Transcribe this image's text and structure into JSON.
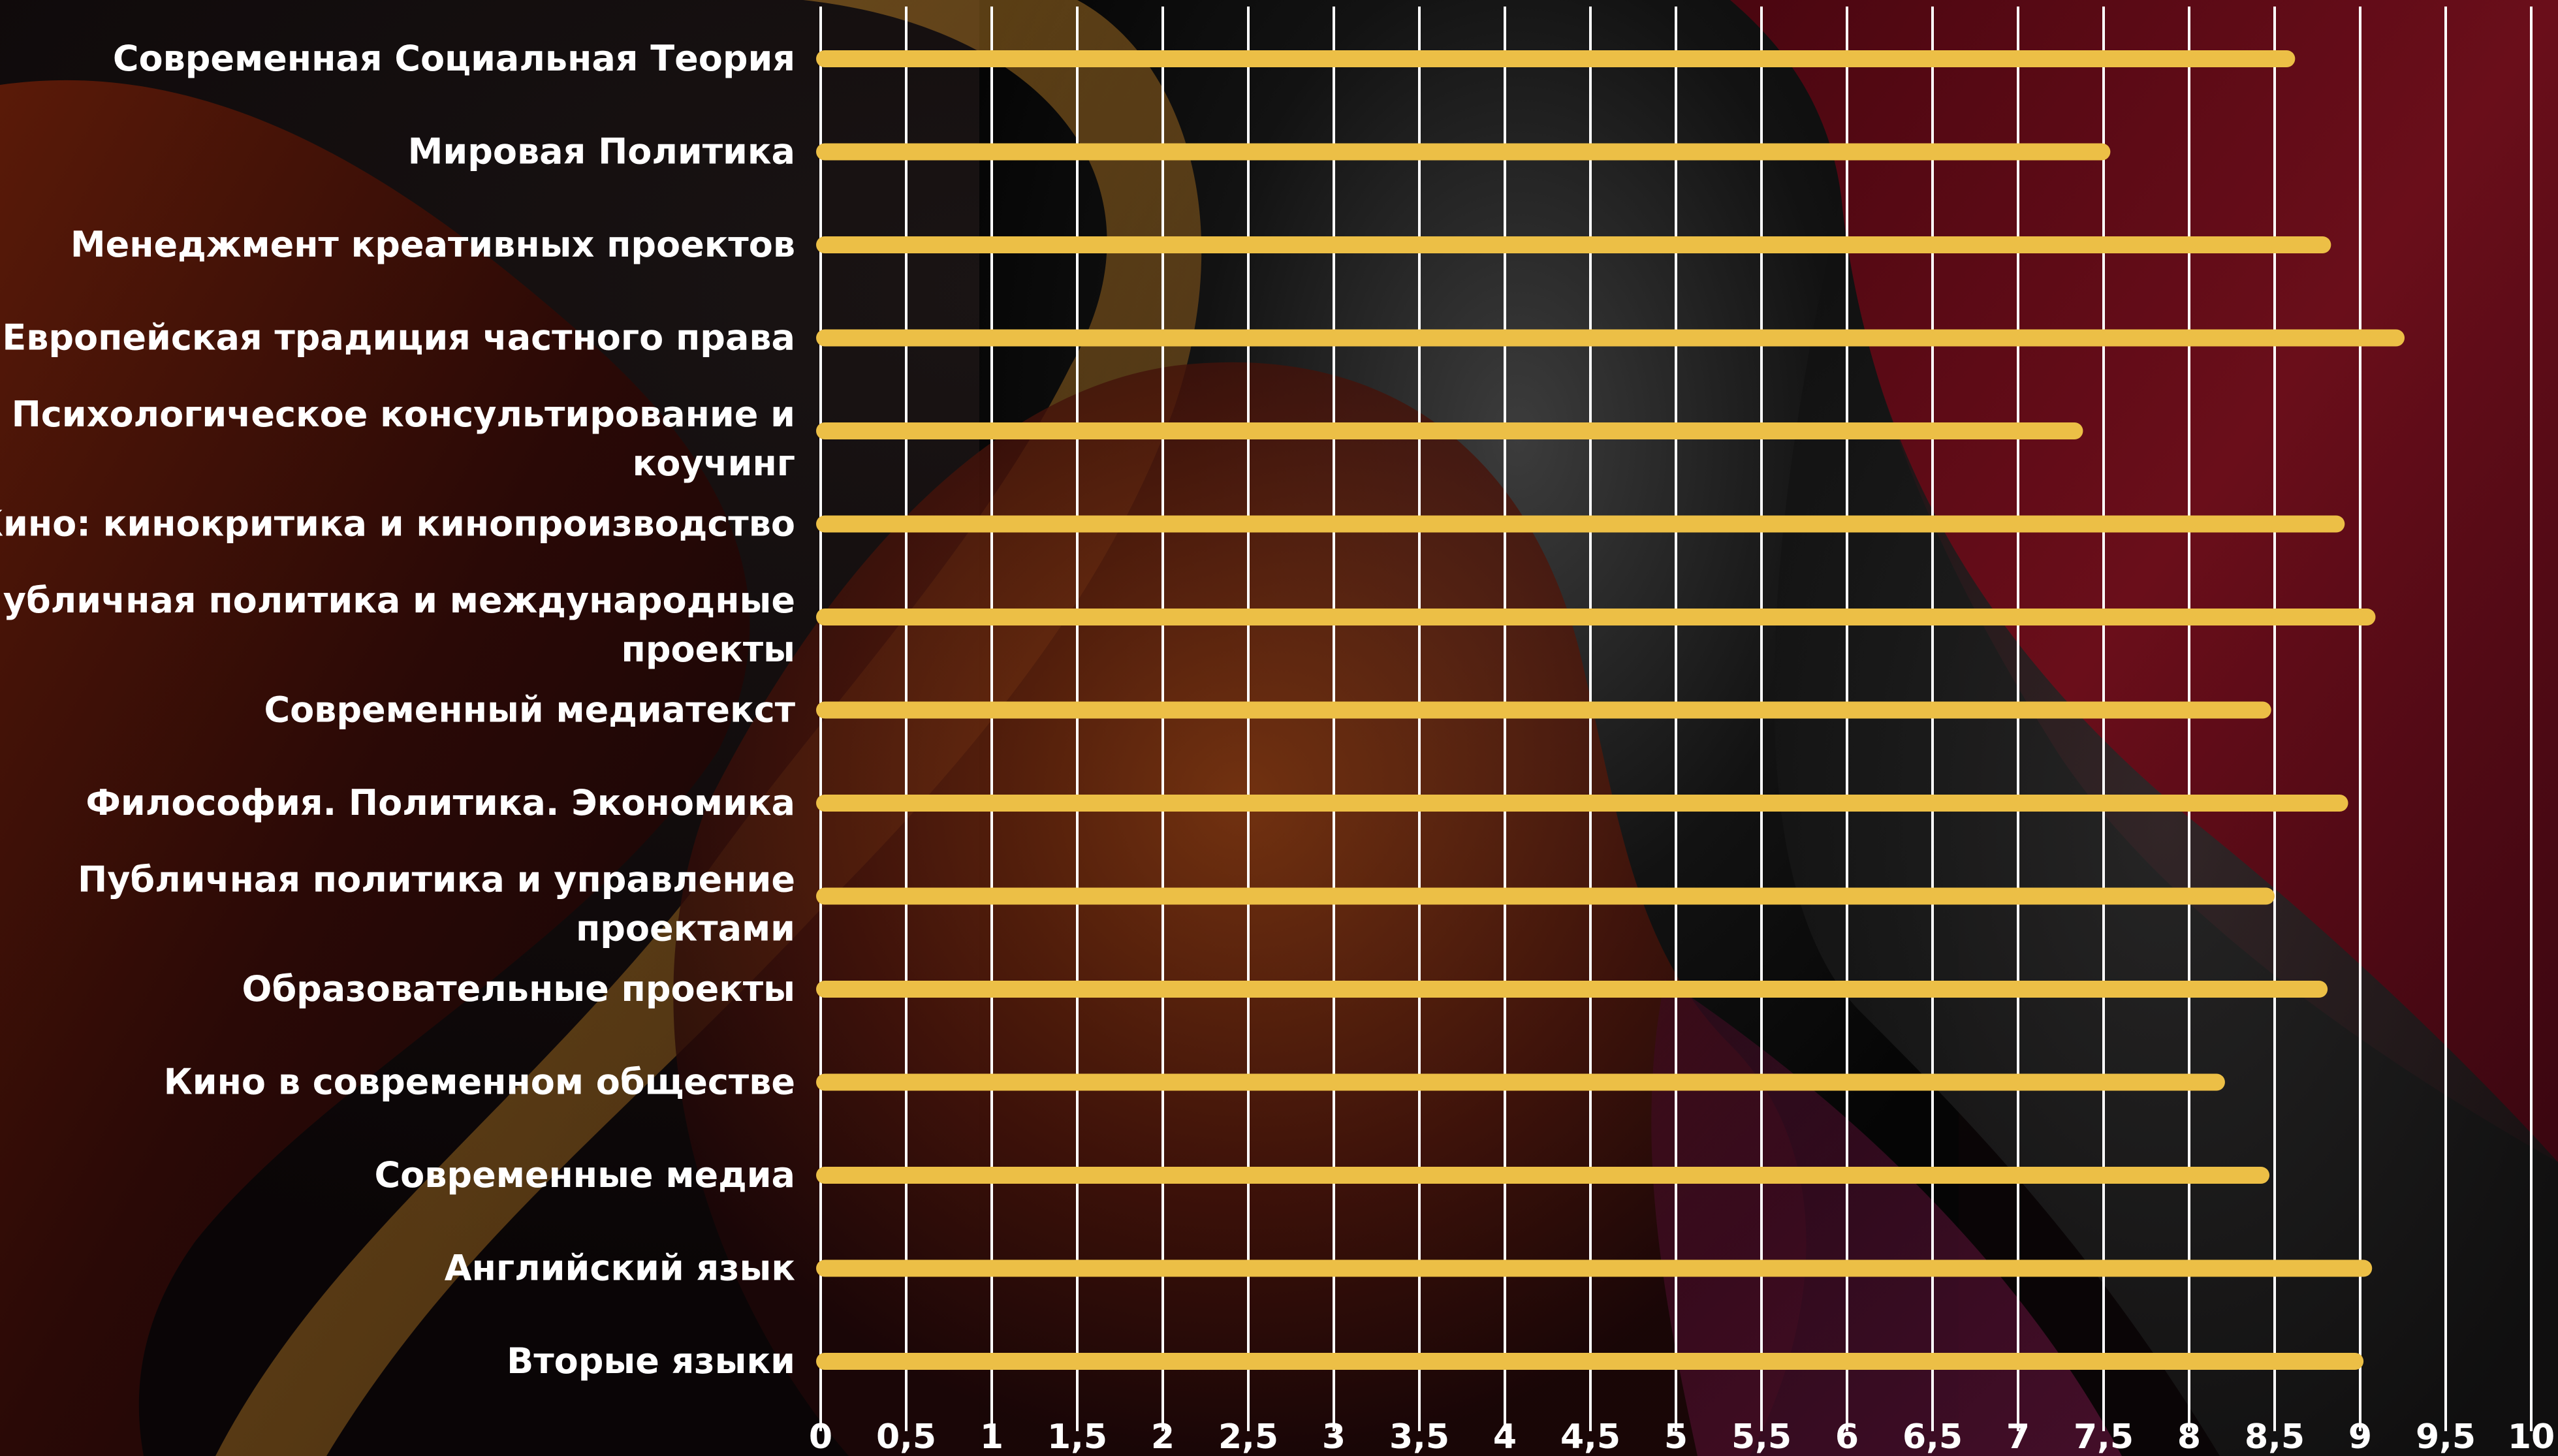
{
  "chart_data": {
    "type": "bar",
    "orientation": "horizontal",
    "categories": [
      "Современная Социальная Теория",
      "Мировая Политика",
      "Менеджмент креативных проектов",
      "Европейская традиция частного права",
      "Психологическое консультирование и коучинг",
      "Кино: кинокритика и кинопроизводство",
      "Публичная политика и международные проекты",
      "Современный медиатекст",
      "Философия. Политика. Экономика",
      "Публичная политика и управление проектами",
      "Образовательные проекты",
      "Кино в современном обществе",
      "Современные медиа",
      "Английский язык",
      "Вторые языки"
    ],
    "values": [
      8.57,
      7.49,
      8.78,
      9.21,
      7.33,
      8.86,
      9.04,
      8.43,
      8.88,
      8.45,
      8.76,
      8.16,
      8.42,
      9.02,
      8.97
    ],
    "xlim": [
      0,
      10
    ],
    "x_ticks": [
      "0",
      "0,5",
      "1",
      "1,5",
      "2",
      "2,5",
      "3",
      "3,5",
      "4",
      "4,5",
      "5",
      "5,5",
      "6",
      "6,5",
      "7",
      "7,5",
      "8",
      "8,5",
      "9",
      "9,5",
      "10"
    ],
    "grid": true,
    "title": "",
    "xlabel": "",
    "ylabel": "",
    "colors": {
      "bar": "#ecbf46",
      "grid": "#ffffff",
      "text": "#ffffff",
      "background": "#0a0506"
    }
  }
}
